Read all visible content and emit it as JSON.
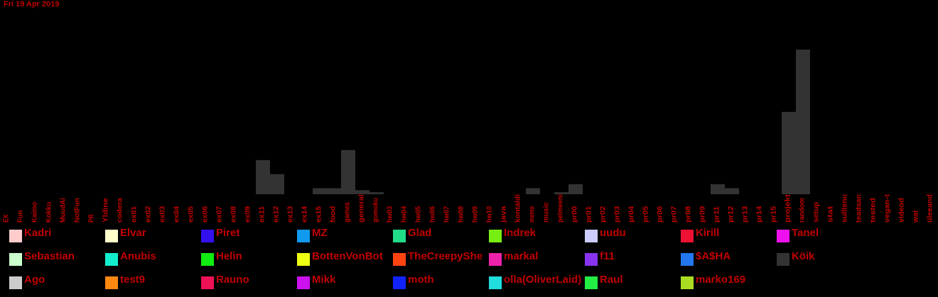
{
  "date_label": "Fri 19 Apr 2019",
  "chart_data": {
    "type": "bar",
    "xlabel": "",
    "ylabel": "",
    "categories": [
      "EX",
      "Fun",
      "Kaimo",
      "Kokku",
      "MuudAi",
      "NotFun",
      "PR",
      "Yldine",
      "codera",
      "ex01",
      "ex02",
      "ex03",
      "ex04",
      "ex05",
      "ex06",
      "ex07",
      "ex08",
      "ex09",
      "ex11",
      "ex12",
      "ex13",
      "ex14",
      "ex15",
      "food",
      "games",
      "general",
      "gomoku",
      "hw03",
      "hw04",
      "hw05",
      "hw06",
      "hw07",
      "hw08",
      "hw09",
      "hw10",
      "java",
      "kontaldi",
      "meme",
      "music",
      "pelmeeni",
      "pr00",
      "pr01",
      "pr02",
      "pr03",
      "pr04",
      "pr05",
      "pr06",
      "pr07",
      "pr08",
      "pr09",
      "pr11",
      "pr12",
      "pr13",
      "pr14",
      "pr15",
      "projekt",
      "random",
      "setup",
      "stat",
      "sulltenu",
      "teadaan",
      "tested",
      "vegan-t",
      "videod",
      "wat",
      "üleeand"
    ],
    "series": [
      {
        "name": "Köik",
        "color": "#333333",
        "values": [
          0,
          0,
          0,
          0,
          0,
          0,
          0,
          0,
          0,
          0,
          0,
          0,
          0,
          0,
          0,
          0,
          0,
          0,
          17,
          10,
          0,
          0,
          3,
          3,
          22,
          2,
          1,
          0,
          0,
          0,
          0,
          0,
          0,
          0,
          0,
          0,
          0,
          3,
          0,
          1,
          5,
          0,
          0,
          0,
          0,
          0,
          0,
          0,
          0,
          0,
          5,
          3,
          0,
          0,
          0,
          41,
          72,
          0,
          0,
          0,
          0,
          0,
          0,
          0,
          0,
          0
        ]
      }
    ],
    "ylim": [
      0,
      90
    ],
    "grid": false,
    "legend_position": "bottom"
  },
  "legend": [
    {
      "name": "Kadri",
      "color": "#ffcccc"
    },
    {
      "name": "Elvar",
      "color": "#ffffcc"
    },
    {
      "name": "Piret",
      "color": "#3311ee"
    },
    {
      "name": "MZ",
      "color": "#1199ee"
    },
    {
      "name": "Glad",
      "color": "#22dd88"
    },
    {
      "name": "Indrek",
      "color": "#77ee11"
    },
    {
      "name": "uudu",
      "color": "#ccccff"
    },
    {
      "name": "Kirill",
      "color": "#ee1133"
    },
    {
      "name": "Tanel",
      "color": "#ee11ee"
    },
    {
      "name": "Sebastian",
      "color": "#ccffcc"
    },
    {
      "name": "Anubis",
      "color": "#11eecc"
    },
    {
      "name": "Helin",
      "color": "#11ee11"
    },
    {
      "name": "BottenVonBot",
      "color": "#eeff11"
    },
    {
      "name": "TheCreepyShe",
      "color": "#ff4411"
    },
    {
      "name": "markal",
      "color": "#ee22aa"
    },
    {
      "name": "f11",
      "color": "#8833ee"
    },
    {
      "name": "$A$HA",
      "color": "#2277ee"
    },
    {
      "name": "Köik",
      "color": "#333333"
    },
    {
      "name": "Ago",
      "color": "#cccccc"
    },
    {
      "name": "test9",
      "color": "#ff8811"
    },
    {
      "name": "Rauno",
      "color": "#ee1155"
    },
    {
      "name": "Mikk",
      "color": "#cc11ee"
    },
    {
      "name": "moth",
      "color": "#1122ff"
    },
    {
      "name": "olla(OliverLaid)",
      "color": "#22dddd"
    },
    {
      "name": "Raul",
      "color": "#22ee44"
    },
    {
      "name": "marko169",
      "color": "#aadd22"
    }
  ],
  "colors": {
    "background": "#000000",
    "text": "#c00000"
  }
}
